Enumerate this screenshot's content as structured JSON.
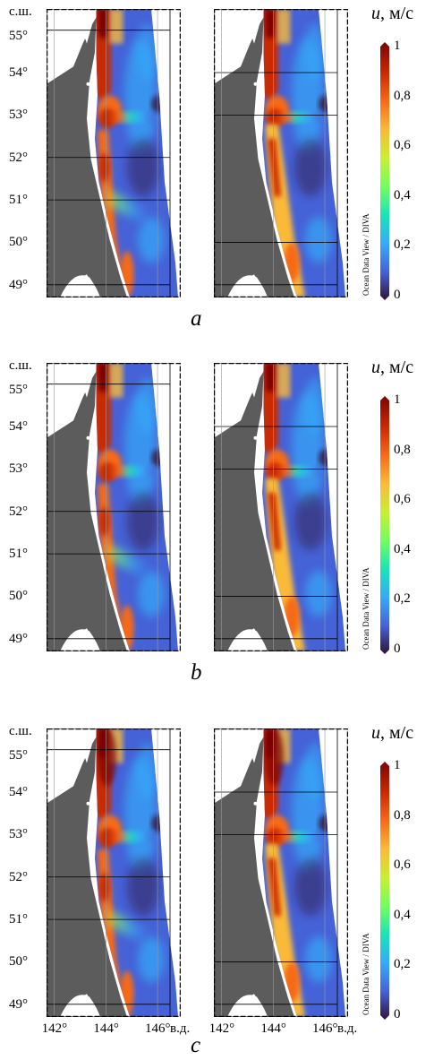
{
  "figure": {
    "panel_labels": [
      "a",
      "b",
      "c"
    ],
    "lat_header": "с.ш.",
    "lat_ticks": [
      "55°",
      "54°",
      "53°",
      "52°",
      "51°",
      "50°",
      "49°"
    ],
    "lon_ticks_left": [
      "142°",
      "144°",
      "146°"
    ],
    "lon_ticks_right": [
      "142°",
      "144°",
      "146°"
    ],
    "lon_suffix": "в.д.",
    "colorbar": {
      "var": "u",
      "unit": ", м/с",
      "ticks": [
        "1",
        "0,8",
        "0,6",
        "0,4",
        "0,2",
        "0"
      ],
      "watermark": "Ocean Data View / DIVA",
      "colors": [
        "#30123b",
        "#4662d7",
        "#36aaf9",
        "#1ae4b6",
        "#72fe5e",
        "#c8ef34",
        "#faba39",
        "#f66b19",
        "#ca2a04",
        "#7a0403"
      ]
    },
    "colors": {
      "land": "#5c5c5c",
      "frame": "#000000",
      "grid": "#9a9a9a"
    }
  },
  "chart_data": {
    "type": "heatmap",
    "description_panels": [
      "a",
      "b",
      "c"
    ],
    "variable": "u",
    "unit": "м/с",
    "color_range": [
      0,
      1
    ],
    "lat_range": [
      48.7,
      55.5
    ],
    "lon_range": [
      142,
      147
    ],
    "lat_ticks": [
      55,
      54,
      53,
      52,
      51,
      50,
      49
    ],
    "lon_ticks": [
      142,
      144,
      146
    ],
    "maxima_lat": [
      54.8,
      53.0,
      51.0
    ]
  }
}
